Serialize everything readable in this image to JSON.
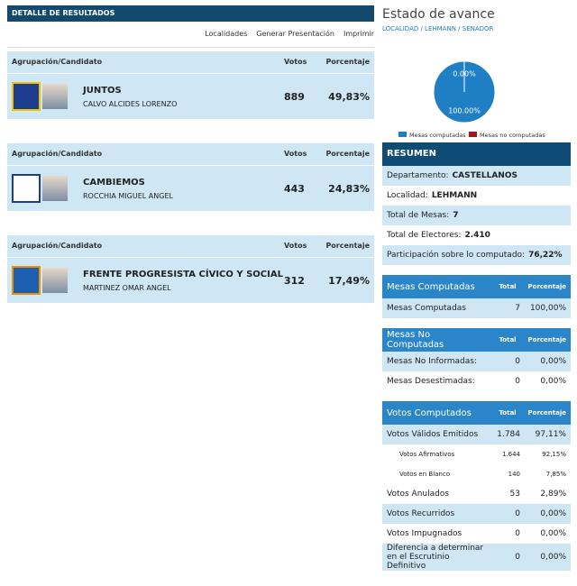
{
  "results": {
    "header": "DETALLE DE RESULTADOS",
    "links": [
      "Localidades",
      "Generar Presentación",
      "Imprimir"
    ],
    "columns": [
      "Agrupación/Candidato",
      "Votos",
      "Porcentaje"
    ],
    "parties": [
      {
        "name": "JUNTOS",
        "candidate": "CALVO ALCIDES LORENZO",
        "votes": 889,
        "percent": "49,83%"
      },
      {
        "name": "CAMBIEMOS",
        "candidate": "ROCCHIA MIGUEL ANGEL",
        "votes": 443,
        "percent": "24,83%"
      },
      {
        "name": "FRENTE PROGRESISTA CÍVICO Y SOCIAL",
        "candidate": "MARTINEZ OMAR ANGEL",
        "votes": 312,
        "percent": "17,49%"
      }
    ]
  },
  "status": {
    "title": "Estado de avance",
    "breadcrumb": "LOCALIDAD / LEHMANN / SENADOR",
    "chart": {
      "type": "pie",
      "categories": [
        "Mesas computadas",
        "Mesas no computadas"
      ],
      "values": [
        100,
        0
      ],
      "value_labels": [
        "100.00%",
        "0.00%"
      ],
      "colors": [
        "#1f7fc4",
        "#a3161b"
      ]
    }
  },
  "summary": {
    "title": "RESUMEN",
    "rows": [
      [
        "Departamento:",
        "CASTELLANOS"
      ],
      [
        "Localidad:",
        "LEHMANN"
      ],
      [
        "Total de Mesas:",
        "7"
      ],
      [
        "Total de Electores:",
        "2.410"
      ],
      [
        "Participación sobre lo computado:",
        "76,22%"
      ]
    ]
  },
  "tables": [
    {
      "header": [
        "Mesas Computadas",
        "Total",
        "Porcentaje"
      ],
      "rows": [
        {
          "label": "Mesas Computadas",
          "total": "7",
          "percent": "100,00%"
        }
      ]
    },
    {
      "header": [
        "Mesas No Computadas",
        "Total",
        "Porcentaje"
      ],
      "rows": [
        {
          "label": "Mesas No Informadas:",
          "total": "0",
          "percent": "0,00%"
        },
        {
          "label": "Mesas Desestimadas:",
          "total": "0",
          "percent": "0,00%"
        }
      ]
    },
    {
      "header": [
        "Votos Computados",
        "Total",
        "Porcentaje"
      ],
      "rows": [
        {
          "label": "Votos Válidos Emitidos",
          "total": "1.784",
          "percent": "97,11%",
          "details": [
            {
              "label": "Votos Afirmativos",
              "total": "1.644",
              "percent": "92,15%"
            },
            {
              "label": "Votos en Blanco",
              "total": "140",
              "percent": "7,85%"
            }
          ]
        },
        {
          "label": "Votos Anulados",
          "total": "53",
          "percent": "2,89%"
        },
        {
          "label": "Votos Recurridos",
          "total": "0",
          "percent": "0,00%"
        },
        {
          "label": "Votos Impugnados",
          "total": "0",
          "percent": "0,00%"
        },
        {
          "label": "Diferencia a determinar en el Escrutinio Definitivo",
          "total": "0",
          "percent": "0,00%"
        }
      ]
    }
  ]
}
